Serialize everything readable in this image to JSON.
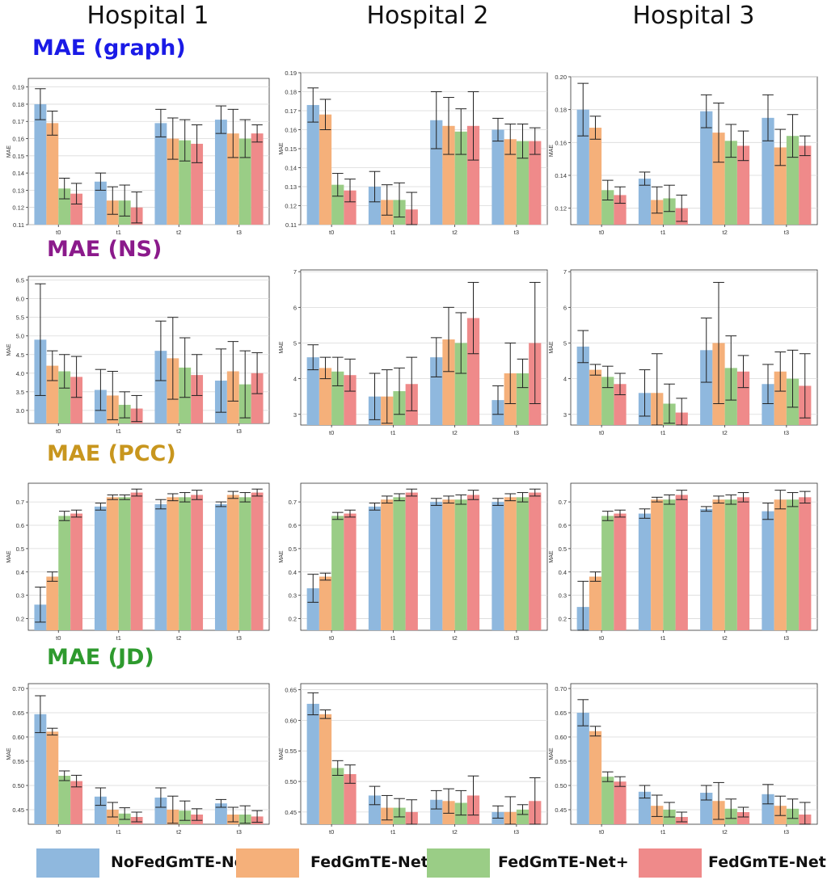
{
  "column_titles": [
    "Hospital 1",
    "Hospital 2",
    "Hospital 3"
  ],
  "row_titles": [
    {
      "text": "MAE (graph)",
      "color": "#1a1ae6"
    },
    {
      "text": "MAE (NS)",
      "color": "#8b1a8b"
    },
    {
      "text": "MAE (PCC)",
      "color": "#c8961e"
    },
    {
      "text": "MAE (JD)",
      "color": "#2e9a2e"
    }
  ],
  "legend": [
    {
      "label": "NoFedGmTE-Net",
      "color": "#8fb8de"
    },
    {
      "label": "FedGmTE-Net",
      "color": "#f5b07a"
    },
    {
      "label": "FedGmTE-Net+",
      "color": "#9acd86"
    },
    {
      "label": "FedGmTE-Net++",
      "color": "#ef8a8a"
    }
  ],
  "chart_data": [
    {
      "type": "bar",
      "title": "",
      "ylabel": "MAE",
      "categories": [
        "t0",
        "t1",
        "t2",
        "t3"
      ],
      "ylim": [
        0.11,
        0.195
      ],
      "yticks": [
        0.11,
        0.12,
        0.13,
        0.14,
        0.15,
        0.16,
        0.17,
        0.18,
        0.19
      ],
      "tick_format": "2",
      "series": [
        {
          "values": [
            0.18,
            0.135,
            0.169,
            0.171
          ],
          "errors": [
            0.009,
            0.005,
            0.008,
            0.008
          ]
        },
        {
          "values": [
            0.169,
            0.124,
            0.16,
            0.163
          ],
          "errors": [
            0.007,
            0.008,
            0.012,
            0.014
          ]
        },
        {
          "values": [
            0.131,
            0.124,
            0.159,
            0.16
          ],
          "errors": [
            0.006,
            0.009,
            0.012,
            0.011
          ]
        },
        {
          "values": [
            0.128,
            0.12,
            0.157,
            0.163
          ],
          "errors": [
            0.006,
            0.009,
            0.011,
            0.005
          ]
        }
      ]
    },
    {
      "type": "bar",
      "title": "",
      "ylabel": "MAE",
      "categories": [
        "t0",
        "t1",
        "t2",
        "t3"
      ],
      "ylim": [
        0.11,
        0.19
      ],
      "yticks": [
        0.11,
        0.12,
        0.13,
        0.14,
        0.15,
        0.16,
        0.17,
        0.18,
        0.19
      ],
      "tick_format": "2",
      "series": [
        {
          "values": [
            0.173,
            0.13,
            0.165,
            0.16
          ],
          "errors": [
            0.009,
            0.008,
            0.015,
            0.006
          ]
        },
        {
          "values": [
            0.168,
            0.123,
            0.162,
            0.155
          ],
          "errors": [
            0.008,
            0.008,
            0.015,
            0.008
          ]
        },
        {
          "values": [
            0.131,
            0.123,
            0.159,
            0.154
          ],
          "errors": [
            0.006,
            0.009,
            0.012,
            0.009
          ]
        },
        {
          "values": [
            0.128,
            0.118,
            0.162,
            0.154
          ],
          "errors": [
            0.006,
            0.009,
            0.018,
            0.007
          ]
        }
      ]
    },
    {
      "type": "bar",
      "title": "",
      "ylabel": "MAE",
      "categories": [
        "t0",
        "t1",
        "t2",
        "t3"
      ],
      "ylim": [
        0.11,
        0.2
      ],
      "yticks": [
        0.12,
        0.14,
        0.16,
        0.18,
        0.2
      ],
      "tick_format": "2",
      "series": [
        {
          "values": [
            0.18,
            0.138,
            0.179,
            0.175
          ],
          "errors": [
            0.016,
            0.004,
            0.01,
            0.014
          ]
        },
        {
          "values": [
            0.169,
            0.125,
            0.166,
            0.157
          ],
          "errors": [
            0.007,
            0.008,
            0.018,
            0.011
          ]
        },
        {
          "values": [
            0.131,
            0.126,
            0.161,
            0.164
          ],
          "errors": [
            0.006,
            0.008,
            0.01,
            0.013
          ]
        },
        {
          "values": [
            0.128,
            0.12,
            0.158,
            0.158
          ],
          "errors": [
            0.005,
            0.008,
            0.009,
            0.006
          ]
        }
      ]
    },
    {
      "type": "bar",
      "title": "",
      "ylabel": "MAE",
      "categories": [
        "t0",
        "t1",
        "t2",
        "t3"
      ],
      "ylim": [
        2.65,
        6.6
      ],
      "yticks": [
        3.0,
        3.5,
        4.0,
        4.5,
        5.0,
        5.5,
        6.0,
        6.5
      ],
      "tick_format": "1",
      "series": [
        {
          "values": [
            4.9,
            3.55,
            4.6,
            3.8
          ],
          "errors": [
            1.5,
            0.55,
            0.8,
            0.85
          ]
        },
        {
          "values": [
            4.2,
            3.4,
            4.4,
            4.05
          ],
          "errors": [
            0.4,
            0.65,
            1.1,
            0.8
          ]
        },
        {
          "values": [
            4.05,
            3.15,
            4.15,
            3.7
          ],
          "errors": [
            0.45,
            0.35,
            0.8,
            0.9
          ]
        },
        {
          "values": [
            3.9,
            3.05,
            3.95,
            4.0
          ],
          "errors": [
            0.55,
            0.35,
            0.55,
            0.55
          ]
        }
      ]
    },
    {
      "type": "bar",
      "title": "",
      "ylabel": "MAE",
      "categories": [
        "t0",
        "t1",
        "t2",
        "t3"
      ],
      "ylim": [
        2.7,
        7.05
      ],
      "yticks": [
        3,
        4,
        5,
        6,
        7
      ],
      "tick_format": "0",
      "series": [
        {
          "values": [
            4.6,
            3.5,
            4.6,
            3.4
          ],
          "errors": [
            0.35,
            0.65,
            0.55,
            0.4
          ]
        },
        {
          "values": [
            4.3,
            3.5,
            5.1,
            4.15
          ],
          "errors": [
            0.3,
            0.75,
            0.9,
            0.85
          ]
        },
        {
          "values": [
            4.2,
            3.65,
            5.0,
            4.15
          ],
          "errors": [
            0.4,
            0.65,
            0.85,
            0.4
          ]
        },
        {
          "values": [
            4.1,
            3.85,
            5.7,
            5.0
          ],
          "errors": [
            0.45,
            0.75,
            1.0,
            1.7
          ]
        }
      ]
    },
    {
      "type": "bar",
      "title": "",
      "ylabel": "MAE",
      "categories": [
        "t0",
        "t1",
        "t2",
        "t3"
      ],
      "ylim": [
        2.7,
        7.05
      ],
      "yticks": [
        3,
        4,
        5,
        6,
        7
      ],
      "tick_format": "0",
      "series": [
        {
          "values": [
            4.9,
            3.6,
            4.8,
            3.85
          ],
          "errors": [
            0.45,
            0.65,
            0.9,
            0.55
          ]
        },
        {
          "values": [
            4.25,
            3.6,
            5.0,
            4.2
          ],
          "errors": [
            0.15,
            1.1,
            1.7,
            0.55
          ]
        },
        {
          "values": [
            4.05,
            3.3,
            4.3,
            4.0
          ],
          "errors": [
            0.3,
            0.55,
            0.9,
            0.8
          ]
        },
        {
          "values": [
            3.85,
            3.05,
            4.2,
            3.8
          ],
          "errors": [
            0.3,
            0.4,
            0.45,
            0.9
          ]
        }
      ]
    },
    {
      "type": "bar",
      "title": "",
      "ylabel": "MAE",
      "categories": [
        "t0",
        "t1",
        "t2",
        "t3"
      ],
      "ylim": [
        0.15,
        0.78
      ],
      "yticks": [
        0.2,
        0.3,
        0.4,
        0.5,
        0.6,
        0.7
      ],
      "tick_format": "1",
      "series": [
        {
          "values": [
            0.26,
            0.68,
            0.69,
            0.69
          ],
          "errors": [
            0.075,
            0.015,
            0.02,
            0.01
          ]
        },
        {
          "values": [
            0.38,
            0.72,
            0.72,
            0.73
          ],
          "errors": [
            0.02,
            0.01,
            0.015,
            0.015
          ]
        },
        {
          "values": [
            0.64,
            0.72,
            0.72,
            0.72
          ],
          "errors": [
            0.02,
            0.01,
            0.02,
            0.02
          ]
        },
        {
          "values": [
            0.65,
            0.74,
            0.73,
            0.74
          ],
          "errors": [
            0.015,
            0.015,
            0.02,
            0.015
          ]
        }
      ]
    },
    {
      "type": "bar",
      "title": "",
      "ylabel": "MAE",
      "categories": [
        "t0",
        "t1",
        "t2",
        "t3"
      ],
      "ylim": [
        0.15,
        0.78
      ],
      "yticks": [
        0.2,
        0.3,
        0.4,
        0.5,
        0.6,
        0.7
      ],
      "tick_format": "1",
      "series": [
        {
          "values": [
            0.33,
            0.68,
            0.7,
            0.7
          ],
          "errors": [
            0.06,
            0.015,
            0.015,
            0.015
          ]
        },
        {
          "values": [
            0.38,
            0.71,
            0.71,
            0.72
          ],
          "errors": [
            0.015,
            0.015,
            0.015,
            0.015
          ]
        },
        {
          "values": [
            0.64,
            0.72,
            0.71,
            0.72
          ],
          "errors": [
            0.015,
            0.015,
            0.02,
            0.02
          ]
        },
        {
          "values": [
            0.65,
            0.74,
            0.73,
            0.74
          ],
          "errors": [
            0.015,
            0.015,
            0.02,
            0.015
          ]
        }
      ]
    },
    {
      "type": "bar",
      "title": "",
      "ylabel": "MAE",
      "categories": [
        "t0",
        "t1",
        "t2",
        "t3"
      ],
      "ylim": [
        0.15,
        0.78
      ],
      "yticks": [
        0.2,
        0.3,
        0.4,
        0.5,
        0.6,
        0.7
      ],
      "tick_format": "1",
      "series": [
        {
          "values": [
            0.25,
            0.65,
            0.67,
            0.66
          ],
          "errors": [
            0.11,
            0.02,
            0.01,
            0.035
          ]
        },
        {
          "values": [
            0.38,
            0.71,
            0.71,
            0.71
          ],
          "errors": [
            0.02,
            0.01,
            0.015,
            0.04
          ]
        },
        {
          "values": [
            0.64,
            0.71,
            0.71,
            0.71
          ],
          "errors": [
            0.02,
            0.02,
            0.02,
            0.03
          ]
        },
        {
          "values": [
            0.65,
            0.73,
            0.72,
            0.72
          ],
          "errors": [
            0.015,
            0.02,
            0.02,
            0.025
          ]
        }
      ]
    },
    {
      "type": "bar",
      "title": "",
      "ylabel": "MAE",
      "categories": [
        "t0",
        "t1",
        "t2",
        "t3"
      ],
      "ylim": [
        0.42,
        0.71
      ],
      "yticks": [
        0.45,
        0.5,
        0.55,
        0.6,
        0.65,
        0.7
      ],
      "tick_format": "2",
      "series": [
        {
          "values": [
            0.647,
            0.477,
            0.475,
            0.463
          ],
          "errors": [
            0.038,
            0.018,
            0.02,
            0.008
          ]
        },
        {
          "values": [
            0.611,
            0.45,
            0.45,
            0.44
          ],
          "errors": [
            0.007,
            0.015,
            0.028,
            0.015
          ]
        },
        {
          "values": [
            0.52,
            0.442,
            0.448,
            0.44
          ],
          "errors": [
            0.01,
            0.012,
            0.02,
            0.018
          ]
        },
        {
          "values": [
            0.509,
            0.435,
            0.44,
            0.436
          ],
          "errors": [
            0.012,
            0.01,
            0.012,
            0.012
          ]
        }
      ]
    },
    {
      "type": "bar",
      "title": "",
      "ylabel": "MAE",
      "categories": [
        "t0",
        "t1",
        "t2",
        "t3"
      ],
      "ylim": [
        0.43,
        0.66
      ],
      "yticks": [
        0.45,
        0.5,
        0.55,
        0.6,
        0.65
      ],
      "tick_format": "2",
      "series": [
        {
          "values": [
            0.627,
            0.477,
            0.47,
            0.45
          ],
          "errors": [
            0.018,
            0.015,
            0.015,
            0.01
          ]
        },
        {
          "values": [
            0.61,
            0.457,
            0.468,
            0.45
          ],
          "errors": [
            0.007,
            0.02,
            0.02,
            0.025
          ]
        },
        {
          "values": [
            0.522,
            0.457,
            0.465,
            0.454
          ],
          "errors": [
            0.012,
            0.015,
            0.02,
            0.008
          ]
        },
        {
          "values": [
            0.512,
            0.45,
            0.477,
            0.468
          ],
          "errors": [
            0.015,
            0.02,
            0.032,
            0.038
          ]
        }
      ]
    },
    {
      "type": "bar",
      "title": "",
      "ylabel": "MAE",
      "categories": [
        "t0",
        "t1",
        "t2",
        "t3"
      ],
      "ylim": [
        0.42,
        0.71
      ],
      "yticks": [
        0.45,
        0.5,
        0.55,
        0.6,
        0.65,
        0.7
      ],
      "tick_format": "2",
      "series": [
        {
          "values": [
            0.65,
            0.487,
            0.485,
            0.482
          ],
          "errors": [
            0.027,
            0.013,
            0.015,
            0.02
          ]
        },
        {
          "values": [
            0.612,
            0.458,
            0.468,
            0.458
          ],
          "errors": [
            0.01,
            0.022,
            0.038,
            0.02
          ]
        },
        {
          "values": [
            0.518,
            0.45,
            0.452,
            0.452
          ],
          "errors": [
            0.01,
            0.015,
            0.02,
            0.02
          ]
        },
        {
          "values": [
            0.508,
            0.435,
            0.445,
            0.44
          ],
          "errors": [
            0.01,
            0.01,
            0.01,
            0.025
          ]
        }
      ]
    }
  ]
}
